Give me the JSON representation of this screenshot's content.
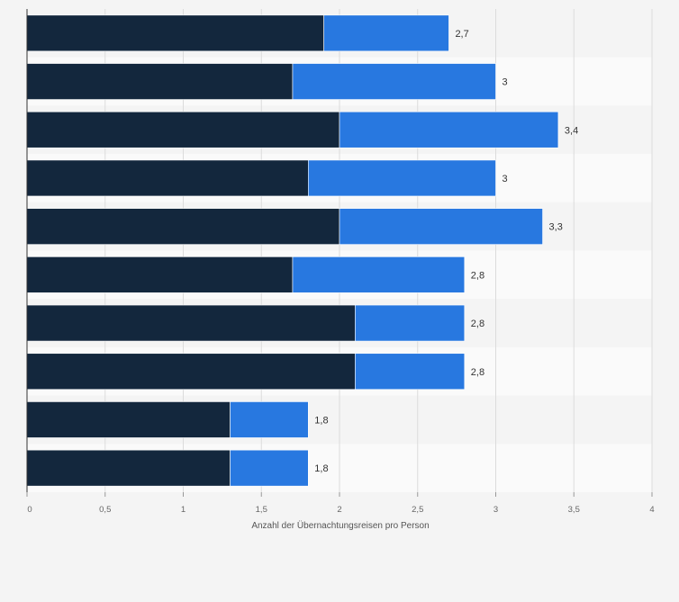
{
  "chart_data": {
    "type": "bar",
    "orientation": "horizontal",
    "stacked": true,
    "categories": [
      "",
      "",
      "",
      "",
      "",
      "",
      "",
      "",
      "",
      ""
    ],
    "series": [
      {
        "values": [
          1.9,
          1.7,
          2.0,
          1.8,
          2.0,
          1.7,
          2.1,
          2.1,
          1.3,
          1.3
        ],
        "color": "#13273d"
      },
      {
        "values": [
          0.8,
          1.3,
          1.4,
          1.2,
          1.3,
          1.1,
          0.7,
          0.7,
          0.5,
          0.5
        ],
        "color": "#2878e0"
      }
    ],
    "totals": [
      2.7,
      3.0,
      3.4,
      3.0,
      3.3,
      2.8,
      2.8,
      2.8,
      1.8,
      1.8
    ],
    "total_labels": [
      "2,7",
      "3",
      "3,4",
      "3",
      "3,3",
      "2,8",
      "2,8",
      "2,8",
      "1,8",
      "1,8"
    ],
    "xlim": [
      0,
      4
    ],
    "xticks": [
      0,
      0.5,
      1,
      1.5,
      2,
      2.5,
      3,
      3.5,
      4
    ],
    "xtick_labels": [
      "0",
      "0,5",
      "1",
      "1,5",
      "2",
      "2,5",
      "3",
      "3,5",
      "4"
    ],
    "xlabel": "Anzahl der Übernachtungsreisen pro Person",
    "ylabel": "",
    "grid": true,
    "legend": "none"
  }
}
